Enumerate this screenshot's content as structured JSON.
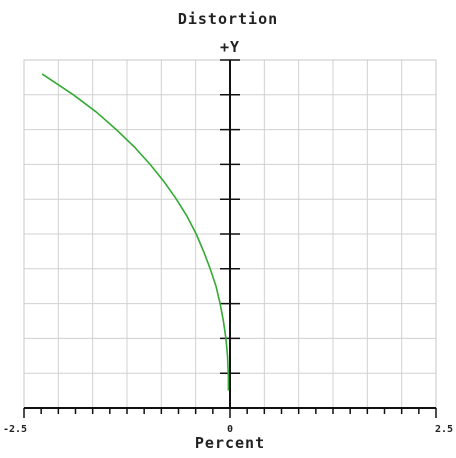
{
  "chart_data": {
    "type": "line",
    "title": "Distortion",
    "xlabel": "Percent",
    "ylabel": "+Y",
    "xlim": [
      -2.5,
      2.5
    ],
    "ylim": [
      0,
      1
    ],
    "x_tick_labels": [
      "-2.5",
      "0",
      "2.5"
    ],
    "grid": true,
    "line_color": "#33aa33",
    "grid_color": "#d0d0d0",
    "series": [
      {
        "x": [
          -0.02,
          -0.02,
          -0.03,
          -0.05,
          -0.08,
          -0.12,
          -0.17,
          -0.24,
          -0.32,
          -0.41,
          -0.52,
          -0.65,
          -0.8,
          -0.97,
          -1.16,
          -1.38,
          -1.62,
          -1.9,
          -2.28
        ],
        "y": [
          0.05,
          0.09,
          0.15,
          0.2,
          0.25,
          0.3,
          0.35,
          0.4,
          0.45,
          0.5,
          0.55,
          0.6,
          0.65,
          0.7,
          0.75,
          0.8,
          0.85,
          0.9,
          0.96
        ]
      }
    ]
  }
}
